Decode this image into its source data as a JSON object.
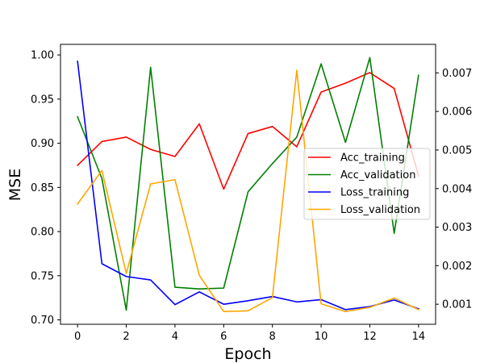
{
  "chart_data": {
    "type": "line",
    "xlabel": "Epoch",
    "ylabel": "MSE",
    "x": [
      0,
      1,
      2,
      3,
      4,
      5,
      6,
      7,
      8,
      9,
      10,
      11,
      12,
      13,
      14
    ],
    "xticks": [
      0,
      2,
      4,
      6,
      8,
      10,
      12,
      14
    ],
    "xlim": [
      -0.7,
      14.7
    ],
    "ylim_left": [
      0.695,
      1.012
    ],
    "yticks_left": [
      0.7,
      0.75,
      0.8,
      0.85,
      0.9,
      0.95,
      1.0
    ],
    "ylim_right": [
      0.00048,
      0.00774
    ],
    "yticks_right": [
      0.001,
      0.002,
      0.003,
      0.004,
      0.005,
      0.006,
      0.007
    ],
    "grid": false,
    "legend_position": "center-right",
    "series": [
      {
        "name": "Acc_training",
        "axis": "left",
        "color": "#ff0000",
        "values": [
          0.875,
          0.902,
          0.907,
          0.893,
          0.885,
          0.922,
          0.848,
          0.911,
          0.919,
          0.896,
          0.958,
          0.968,
          0.98,
          0.962,
          0.863
        ]
      },
      {
        "name": "Acc_validation",
        "axis": "left",
        "color": "#008000",
        "values": [
          0.93,
          0.86,
          0.711,
          0.986,
          0.737,
          0.735,
          0.736,
          0.845,
          0.877,
          0.907,
          0.99,
          0.901,
          0.997,
          0.798,
          0.977
        ]
      },
      {
        "name": "Loss_training",
        "axis": "right",
        "color": "#0000ff",
        "values": [
          0.0073,
          0.00205,
          0.00172,
          0.00163,
          0.00099,
          0.00132,
          0.001,
          0.00109,
          0.0012,
          0.00106,
          0.00112,
          0.00086,
          0.00094,
          0.00111,
          0.00088
        ]
      },
      {
        "name": "Loss_validation",
        "axis": "right",
        "color": "#ffa500",
        "values": [
          0.0036,
          0.00447,
          0.0018,
          0.00412,
          0.00423,
          0.00175,
          0.00081,
          0.00083,
          0.00117,
          0.00707,
          0.00101,
          0.00081,
          0.00092,
          0.00116,
          0.00086
        ]
      }
    ]
  }
}
